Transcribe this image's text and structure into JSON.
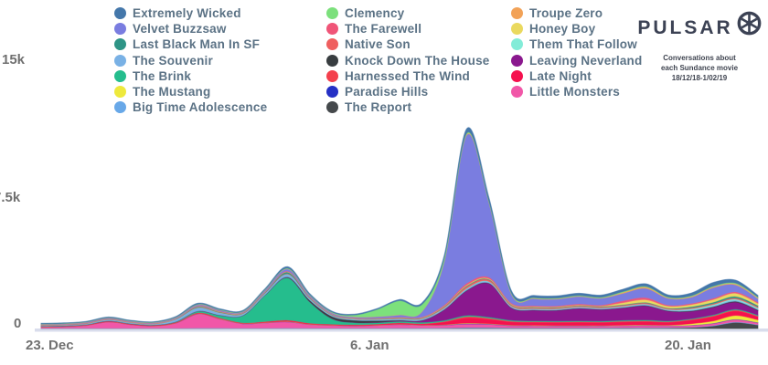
{
  "branding": {
    "name": "PULSAR",
    "caption_lines": [
      "Conversations about",
      "each Sundance movie",
      "18/12/18-1/02/19"
    ]
  },
  "legend": {
    "columns": [
      {
        "items": [
          {
            "label": "Extremely Wicked",
            "color": "#4477aa"
          },
          {
            "label": "Velvet Buzzsaw",
            "color": "#7a7de0"
          },
          {
            "label": "Last Black Man In SF",
            "color": "#2e9486"
          },
          {
            "label": "The Souvenir",
            "color": "#79b1e5"
          },
          {
            "label": "The Brink",
            "color": "#25bd8d"
          },
          {
            "label": "The Mustang",
            "color": "#eee93c"
          },
          {
            "label": "Big Time Adolescence",
            "color": "#68a8e8"
          }
        ]
      },
      {
        "items": [
          {
            "label": "Clemency",
            "color": "#7ce07c"
          },
          {
            "label": "The Farewell",
            "color": "#f05578"
          },
          {
            "label": "Native Son",
            "color": "#ef5f5f"
          },
          {
            "label": "Knock Down The House",
            "color": "#383d40"
          },
          {
            "label": "Harnessed The Wind",
            "color": "#f4404d"
          },
          {
            "label": "Paradise Hills",
            "color": "#2530c5"
          },
          {
            "label": "The Report",
            "color": "#45494c"
          }
        ]
      },
      {
        "items": [
          {
            "label": "Troupe Zero",
            "color": "#f2a257"
          },
          {
            "label": "Honey Boy",
            "color": "#ead95f"
          },
          {
            "label": "Them That Follow",
            "color": "#83ecd8"
          },
          {
            "label": "Leaving Neverland",
            "color": "#8a188e"
          },
          {
            "label": "Late Night",
            "color": "#f5114e"
          },
          {
            "label": "Little Monsters",
            "color": "#f157a8"
          }
        ]
      }
    ]
  },
  "chart_data": {
    "type": "area",
    "stacking": "normal",
    "title": "",
    "xlabel": "",
    "ylabel": "",
    "ylim": [
      0,
      15000
    ],
    "y_tick_labels": [
      "0",
      "7.5k",
      "15k"
    ],
    "x_tick_labels": [
      "23. Dec",
      "6. Jan",
      "20. Jan"
    ],
    "legend_position": "top",
    "grid": false,
    "axis_line_color": "#d9ddec",
    "dates": [
      "22 Dec",
      "23 Dec",
      "24 Dec",
      "25 Dec",
      "26 Dec",
      "27 Dec",
      "28 Dec",
      "29 Dec",
      "30 Dec",
      "31 Dec",
      "1 Jan",
      "2 Jan",
      "3 Jan",
      "4 Jan",
      "5 Jan",
      "6 Jan",
      "7 Jan",
      "8 Jan",
      "9 Jan",
      "10 Jan",
      "11 Jan",
      "12 Jan",
      "13 Jan",
      "14 Jan",
      "15 Jan",
      "16 Jan",
      "17 Jan",
      "18 Jan",
      "19 Jan",
      "20 Jan",
      "21 Jan",
      "22 Jan",
      "23 Jan"
    ],
    "stack_order_note": "series listed bottom-to-top of the stack; values are estimated daily conversation counts",
    "series": [
      {
        "name": "The Report",
        "color": "#45494c",
        "values": [
          10,
          10,
          10,
          10,
          10,
          10,
          10,
          15,
          15,
          15,
          15,
          15,
          15,
          15,
          15,
          15,
          15,
          15,
          20,
          30,
          30,
          25,
          25,
          25,
          25,
          25,
          30,
          30,
          40,
          60,
          150,
          350,
          200
        ]
      },
      {
        "name": "Big Time Adolescence",
        "color": "#68a8e8",
        "values": [
          10,
          10,
          10,
          10,
          10,
          10,
          10,
          15,
          15,
          10,
          10,
          15,
          10,
          10,
          10,
          10,
          15,
          15,
          20,
          30,
          30,
          20,
          20,
          20,
          20,
          20,
          20,
          20,
          20,
          20,
          25,
          30,
          25
        ]
      },
      {
        "name": "Little Monsters",
        "color": "#f157a8",
        "values": [
          60,
          80,
          150,
          350,
          200,
          120,
          280,
          800,
          500,
          250,
          300,
          350,
          200,
          150,
          120,
          150,
          200,
          150,
          150,
          200,
          180,
          120,
          110,
          100,
          100,
          100,
          110,
          120,
          100,
          100,
          110,
          120,
          100
        ]
      },
      {
        "name": "Paradise Hills",
        "color": "#2530c5",
        "values": [
          5,
          5,
          5,
          5,
          5,
          5,
          5,
          8,
          8,
          8,
          8,
          10,
          8,
          8,
          8,
          8,
          10,
          10,
          15,
          25,
          20,
          15,
          15,
          15,
          15,
          15,
          15,
          15,
          15,
          15,
          20,
          25,
          20
        ]
      },
      {
        "name": "The Mustang",
        "color": "#eee93c",
        "values": [
          5,
          5,
          5,
          5,
          5,
          5,
          5,
          8,
          8,
          8,
          8,
          10,
          8,
          8,
          8,
          8,
          10,
          10,
          15,
          25,
          20,
          15,
          15,
          15,
          15,
          15,
          20,
          20,
          20,
          80,
          130,
          220,
          150
        ]
      },
      {
        "name": "Late Night",
        "color": "#f5114e",
        "values": [
          20,
          20,
          25,
          30,
          25,
          25,
          30,
          40,
          35,
          30,
          40,
          60,
          50,
          45,
          45,
          50,
          60,
          60,
          150,
          300,
          250,
          180,
          170,
          170,
          180,
          170,
          180,
          190,
          160,
          200,
          250,
          250,
          180
        ]
      },
      {
        "name": "Harnessed The Wind",
        "color": "#f4404d",
        "values": [
          10,
          10,
          10,
          10,
          10,
          10,
          10,
          15,
          15,
          12,
          15,
          20,
          15,
          12,
          12,
          15,
          20,
          25,
          40,
          70,
          60,
          45,
          40,
          40,
          40,
          40,
          45,
          45,
          40,
          40,
          45,
          50,
          45
        ]
      },
      {
        "name": "The Brink",
        "color": "#25bd8d",
        "values": [
          5,
          5,
          5,
          8,
          8,
          10,
          30,
          80,
          150,
          400,
          1500,
          2400,
          1200,
          300,
          120,
          80,
          80,
          70,
          60,
          70,
          60,
          50,
          45,
          45,
          45,
          45,
          50,
          50,
          45,
          45,
          50,
          55,
          50
        ]
      },
      {
        "name": "Leaving Neverland",
        "color": "#8a188e",
        "values": [
          5,
          5,
          5,
          5,
          5,
          5,
          5,
          8,
          8,
          8,
          10,
          15,
          15,
          15,
          15,
          20,
          30,
          100,
          600,
          1400,
          1900,
          700,
          600,
          600,
          700,
          650,
          700,
          800,
          550,
          420,
          420,
          400,
          250
        ]
      },
      {
        "name": "Knock Down The House",
        "color": "#383d40",
        "values": [
          5,
          5,
          5,
          5,
          5,
          5,
          5,
          8,
          8,
          8,
          10,
          30,
          80,
          120,
          120,
          100,
          40,
          20,
          20,
          25,
          25,
          20,
          20,
          20,
          20,
          20,
          25,
          25,
          25,
          30,
          40,
          45,
          40
        ]
      },
      {
        "name": "The Souvenir",
        "color": "#79b1e5",
        "values": [
          30,
          35,
          40,
          60,
          50,
          45,
          120,
          180,
          120,
          80,
          90,
          150,
          80,
          60,
          55,
          60,
          70,
          70,
          70,
          80,
          70,
          55,
          50,
          50,
          50,
          50,
          55,
          55,
          50,
          50,
          55,
          60,
          55
        ]
      },
      {
        "name": "Them That Follow",
        "color": "#83ecd8",
        "values": [
          5,
          5,
          5,
          5,
          5,
          5,
          5,
          8,
          8,
          8,
          8,
          10,
          8,
          8,
          8,
          8,
          10,
          10,
          15,
          25,
          20,
          15,
          15,
          15,
          15,
          15,
          20,
          20,
          20,
          55,
          60,
          65,
          60
        ]
      },
      {
        "name": "Native Son",
        "color": "#ef5f5f",
        "values": [
          10,
          10,
          10,
          12,
          10,
          10,
          12,
          20,
          18,
          15,
          15,
          25,
          20,
          15,
          15,
          15,
          20,
          25,
          50,
          110,
          90,
          60,
          55,
          55,
          55,
          55,
          60,
          60,
          55,
          55,
          60,
          65,
          60
        ]
      },
      {
        "name": "Last Black Man In SF",
        "color": "#2e9486",
        "values": [
          10,
          10,
          10,
          12,
          10,
          10,
          15,
          40,
          35,
          25,
          40,
          90,
          40,
          25,
          20,
          20,
          25,
          25,
          30,
          40,
          35,
          30,
          30,
          30,
          30,
          30,
          35,
          35,
          30,
          70,
          80,
          90,
          80
        ]
      },
      {
        "name": "Honey Boy",
        "color": "#ead95f",
        "values": [
          10,
          10,
          10,
          10,
          10,
          10,
          10,
          15,
          15,
          12,
          12,
          15,
          12,
          12,
          12,
          12,
          15,
          15,
          25,
          40,
          35,
          30,
          30,
          30,
          30,
          30,
          110,
          150,
          100,
          120,
          150,
          180,
          120
        ]
      },
      {
        "name": "The Farewell",
        "color": "#f05578",
        "values": [
          15,
          15,
          15,
          18,
          15,
          15,
          18,
          30,
          25,
          20,
          25,
          40,
          30,
          22,
          20,
          22,
          30,
          35,
          60,
          100,
          80,
          60,
          55,
          55,
          55,
          55,
          110,
          120,
          60,
          60,
          70,
          75,
          65
        ]
      },
      {
        "name": "Velvet Buzzsaw",
        "color": "#7a7de0",
        "values": [
          30,
          30,
          35,
          40,
          35,
          35,
          45,
          60,
          55,
          50,
          80,
          120,
          80,
          60,
          60,
          80,
          120,
          300,
          2500,
          8400,
          4200,
          500,
          400,
          380,
          420,
          380,
          420,
          520,
          380,
          350,
          600,
          400,
          200
        ]
      },
      {
        "name": "Troupe Zero",
        "color": "#f2a257",
        "values": [
          10,
          10,
          10,
          10,
          10,
          10,
          10,
          15,
          12,
          10,
          12,
          15,
          12,
          10,
          10,
          12,
          15,
          15,
          25,
          45,
          35,
          25,
          25,
          25,
          25,
          25,
          60,
          80,
          40,
          45,
          50,
          55,
          50
        ]
      },
      {
        "name": "Clemency",
        "color": "#7ce07c",
        "values": [
          10,
          10,
          10,
          12,
          10,
          10,
          12,
          20,
          18,
          15,
          20,
          30,
          25,
          30,
          100,
          400,
          800,
          400,
          150,
          60,
          45,
          35,
          35,
          35,
          35,
          35,
          40,
          40,
          35,
          35,
          40,
          45,
          40
        ]
      },
      {
        "name": "Extremely Wicked",
        "color": "#4477aa",
        "values": [
          30,
          30,
          30,
          35,
          30,
          30,
          35,
          50,
          45,
          40,
          50,
          80,
          55,
          45,
          45,
          50,
          60,
          80,
          150,
          250,
          200,
          130,
          120,
          120,
          120,
          120,
          130,
          140,
          120,
          150,
          200,
          160,
          90
        ]
      }
    ]
  }
}
